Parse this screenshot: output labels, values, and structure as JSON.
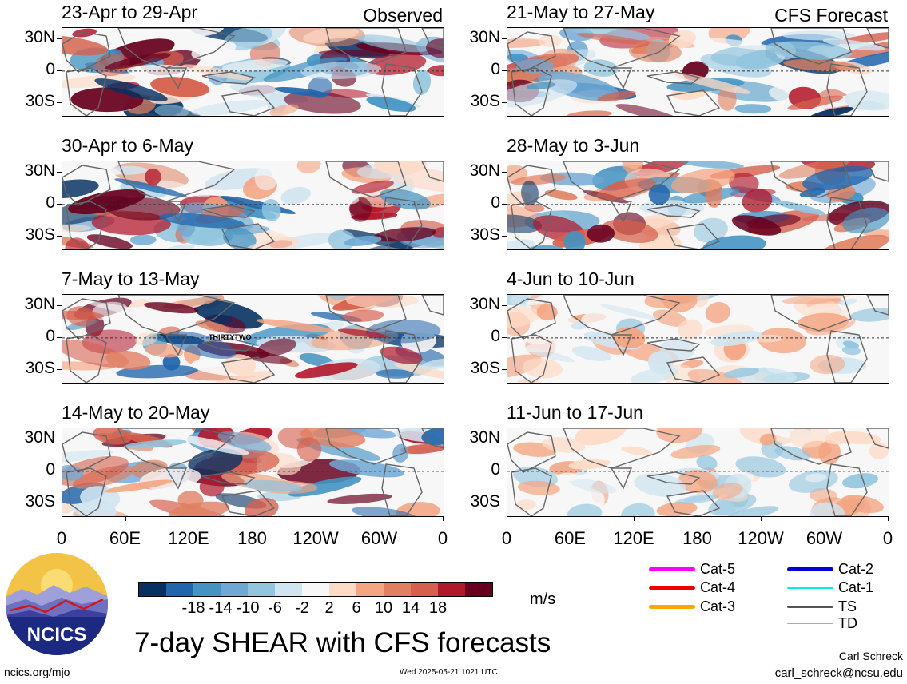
{
  "panels_left": [
    {
      "title": "23-Apr to 29-Apr",
      "tag": "Observed"
    },
    {
      "title": "30-Apr to 6-May",
      "tag": ""
    },
    {
      "title": "7-May to 13-May",
      "tag": "",
      "storm_label": "THIRTYTWO"
    },
    {
      "title": "14-May to 20-May",
      "tag": ""
    }
  ],
  "panels_right": [
    {
      "title": "21-May to 27-May",
      "tag": "CFS Forecast"
    },
    {
      "title": "28-May to 3-Jun",
      "tag": ""
    },
    {
      "title": "4-Jun to 10-Jun",
      "tag": ""
    },
    {
      "title": "11-Jun to 17-Jun",
      "tag": ""
    }
  ],
  "y_axis_labels": [
    "30N",
    "0",
    "30S"
  ],
  "x_axis_labels": [
    "0",
    "60E",
    "120E",
    "180",
    "120W",
    "60W",
    "0"
  ],
  "colorbar": {
    "colors": [
      "#053061",
      "#2166ac",
      "#4393c3",
      "#6fa8d4",
      "#92c5de",
      "#d1e5f0",
      "#f7f7f7",
      "#fddbc7",
      "#f4a582",
      "#e08060",
      "#d6604d",
      "#b2182b",
      "#67001f"
    ],
    "labels": [
      "-18",
      "-14",
      "-10",
      "-6",
      "-2",
      "2",
      "6",
      "10",
      "14",
      "18"
    ],
    "units": "m/s"
  },
  "legend": [
    {
      "label": "Cat-5",
      "color": "#ff00ff",
      "weight": "thick"
    },
    {
      "label": "Cat-4",
      "color": "#ee0000",
      "weight": "thick"
    },
    {
      "label": "Cat-3",
      "color": "#ffa500",
      "weight": "thick"
    },
    {
      "label": "Cat-2",
      "color": "#0000dd",
      "weight": "thick"
    },
    {
      "label": "Cat-1",
      "color": "#00eeee",
      "weight": "medium"
    },
    {
      "label": "TS",
      "color": "#555555",
      "weight": "medium"
    },
    {
      "label": "TD",
      "color": "#aaaaaa",
      "weight": "thin"
    }
  ],
  "title": "7-day SHEAR with CFS forecasts",
  "logo_text": "NCICS",
  "footer": {
    "url": "ncics.org/mjo",
    "timestamp": "Wed 2025-05-21 1021 UTC",
    "author": "Carl Schreck",
    "email": "carl_schreck@ncsu.edu"
  }
}
